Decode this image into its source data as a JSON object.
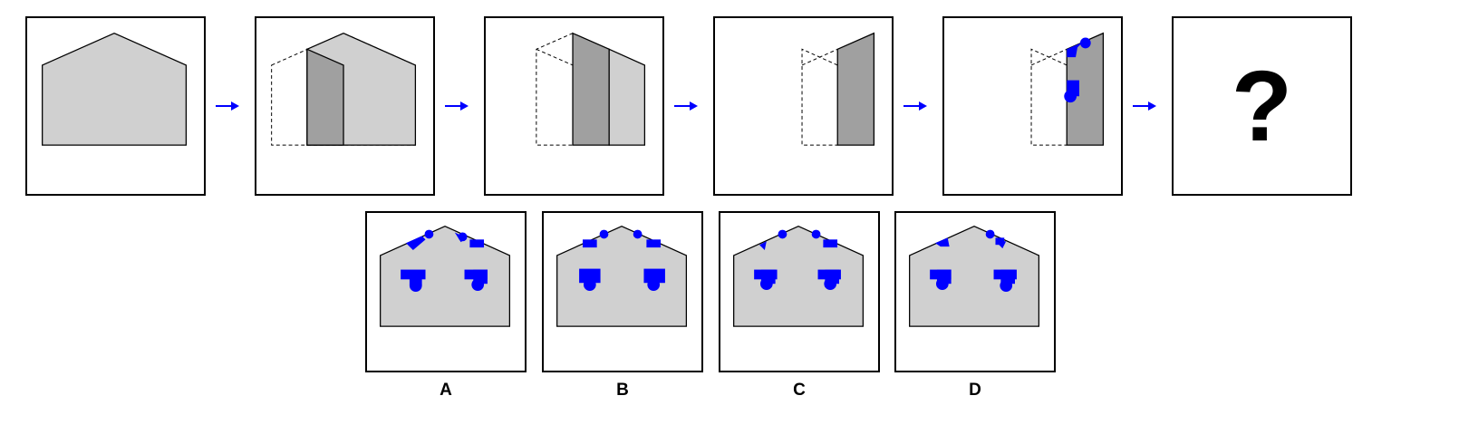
{
  "colors": {
    "panel_fill": "#d0d0d0",
    "fold_fill": "#a0a0a0",
    "mark_color": "#0000ff",
    "outline": "#000000"
  },
  "question": {
    "mark": "?"
  },
  "options": [
    {
      "label": "A"
    },
    {
      "label": "B"
    },
    {
      "label": "C"
    },
    {
      "label": "D"
    }
  ]
}
